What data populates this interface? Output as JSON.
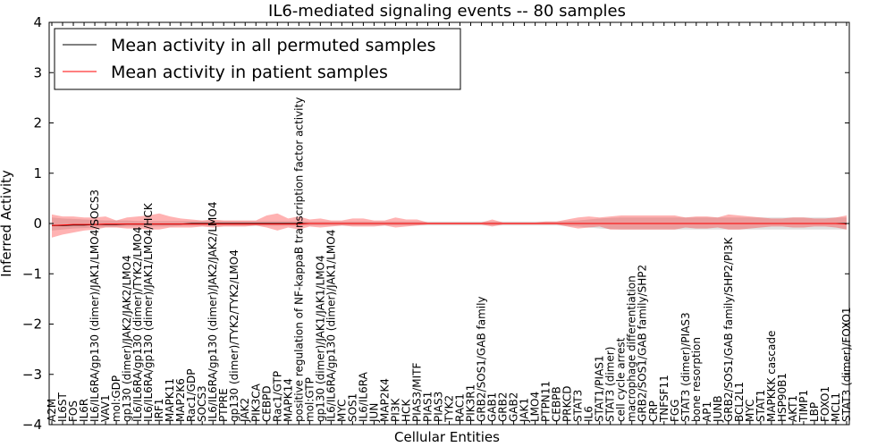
{
  "chart_data": {
    "type": "line",
    "title": "IL6-mediated signaling events -- 80 samples",
    "xlabel": "Cellular Entities",
    "ylabel": "Inferred Activity",
    "ylim": [
      -4,
      4
    ],
    "yticks": [
      -4,
      -3,
      -2,
      -1,
      0,
      1,
      2,
      3,
      4
    ],
    "ytick_labels": [
      "−4",
      "−3",
      "−2",
      "−1",
      "0",
      "1",
      "2",
      "3",
      "4"
    ],
    "legend": {
      "position": "top-left",
      "entries": [
        {
          "name": "Mean activity in all permuted samples",
          "color": "#000000"
        },
        {
          "name": "Mean activity in patient samples",
          "color": "#ff0000"
        }
      ]
    },
    "categories": [
      "A2M",
      "IL6ST",
      "FOS",
      "IL6R",
      "IL6/IL6RA/gp130 (dimer)/JAK1/LMO4/SOCS3",
      "VAV1",
      "mol:GDP",
      "gp130 (dimer)/JAK2/JAK2/LMO4",
      "IL6/IL6RA/gp130 (dimer)/TYK2/LMO4",
      "IL6/IL6RA/gp130 (dimer)/JAK1/LMO4/HCK",
      "IRF1",
      "MAPK11",
      "MAP2K6",
      "Rac1/GDP",
      "SOCS3",
      "IL6/IL6RA/gp130 (dimer)/JAK2/JAK2/LMO4",
      "PTPRE",
      "gp130 (dimer)/TYK2/TYK2/LMO4",
      "JAK2",
      "PIK3CA",
      "CEBPD",
      "Rac1/GTP",
      "MAPK14",
      "positive regulation of NF-kappaB transcription factor activity",
      "mol:GTP",
      "gp130 (dimer)/JAK1/JAK1/LMO4",
      "IL6/IL6RA/gp130 (dimer)/JAK1/LMO4",
      "MYC",
      "SOS1",
      "IL6/IL6RA",
      "JUN",
      "MAP2K4",
      "PI3K",
      "HCK",
      "PIAS3/MITF",
      "PIAS1",
      "PIAS3",
      "TYK2",
      "RAC1",
      "PIK3R1",
      "GRB2/SOS1/GAB family",
      "GAB1",
      "GRB2",
      "GAB2",
      "JAK1",
      "LMO4",
      "PTPN11",
      "CEBPB",
      "PRKCD",
      "STAT3",
      "IL6",
      "STAT1/PIAS1",
      "STAT3 (dimer)",
      "cell cycle arrest",
      "macrophage differentiation",
      "GRB2/SOS1/GAB family/SHP2",
      "CRP",
      "TNFSF11",
      "FGG",
      "STAT3 (dimer)/PIAS3",
      "bone resorption",
      "AP1",
      "JUNB",
      "GRB2/SOS1/GAB family/SHP2/PI3K",
      "BCL2L1",
      "MYC",
      "STAT1",
      "MAPKKK cascade",
      "HSP90B1",
      "AKT1",
      "TIMP1",
      "LBP",
      "FOXO1",
      "MCL1",
      "STAT3 (dimer)/FOXO1"
    ],
    "series": [
      {
        "name": "Mean activity in all permuted samples",
        "color": "#000000",
        "values": [
          -0.04,
          -0.04,
          -0.03,
          -0.03,
          -0.02,
          -0.02,
          -0.02,
          -0.01,
          -0.01,
          -0.01,
          -0.01,
          -0.01,
          -0.01,
          0.0,
          0.0,
          0.0,
          0.0,
          0.0,
          0.0,
          0.0,
          0.0,
          0.0,
          0.0,
          0.0,
          0.0,
          0.0,
          0.0,
          0.0,
          0.0,
          0.0,
          0.0,
          0.0,
          0.0,
          0.0,
          0.0,
          0.0,
          0.0,
          0.0,
          0.0,
          0.0,
          0.0,
          0.0,
          0.0,
          0.0,
          0.0,
          0.0,
          0.0,
          0.0,
          0.0,
          0.0,
          0.0,
          0.0,
          0.0,
          0.0,
          0.0,
          0.0,
          0.0,
          0.0,
          0.0,
          0.0,
          0.0,
          0.0,
          0.0,
          0.0,
          0.0,
          0.0,
          0.0,
          0.0,
          0.0,
          0.0,
          0.0,
          0.0,
          0.0,
          0.0,
          0.0
        ],
        "band_low": [
          -0.14,
          -0.12,
          -0.1,
          -0.09,
          -0.08,
          -0.07,
          -0.07,
          -0.06,
          -0.06,
          -0.06,
          -0.06,
          -0.06,
          -0.05,
          -0.05,
          -0.05,
          -0.05,
          -0.05,
          -0.05,
          -0.05,
          -0.05,
          -0.05,
          -0.05,
          -0.05,
          -0.05,
          -0.04,
          -0.04,
          -0.04,
          -0.04,
          -0.04,
          -0.04,
          -0.04,
          -0.04,
          -0.04,
          -0.04,
          -0.04,
          -0.04,
          -0.04,
          -0.04,
          -0.04,
          -0.04,
          -0.04,
          -0.04,
          -0.04,
          -0.04,
          -0.04,
          -0.04,
          -0.04,
          -0.04,
          -0.05,
          -0.06,
          -0.08,
          -0.1,
          -0.11,
          -0.12,
          -0.12,
          -0.12,
          -0.12,
          -0.12,
          -0.12,
          -0.12,
          -0.12,
          -0.12,
          -0.12,
          -0.12,
          -0.12,
          -0.12,
          -0.12,
          -0.12,
          -0.12,
          -0.12,
          -0.12,
          -0.12,
          -0.12,
          -0.12,
          -0.12
        ],
        "band_high": [
          0.12,
          0.1,
          0.09,
          0.08,
          0.07,
          0.06,
          0.06,
          0.06,
          0.05,
          0.05,
          0.05,
          0.05,
          0.05,
          0.05,
          0.05,
          0.05,
          0.05,
          0.05,
          0.05,
          0.05,
          0.05,
          0.05,
          0.05,
          0.05,
          0.04,
          0.04,
          0.04,
          0.04,
          0.04,
          0.04,
          0.04,
          0.04,
          0.04,
          0.04,
          0.04,
          0.04,
          0.04,
          0.04,
          0.04,
          0.04,
          0.04,
          0.04,
          0.04,
          0.04,
          0.04,
          0.04,
          0.04,
          0.04,
          0.05,
          0.06,
          0.08,
          0.1,
          0.11,
          0.12,
          0.12,
          0.12,
          0.12,
          0.12,
          0.12,
          0.12,
          0.12,
          0.12,
          0.12,
          0.12,
          0.12,
          0.12,
          0.12,
          0.12,
          0.12,
          0.12,
          0.12,
          0.12,
          0.12,
          0.12,
          0.12
        ]
      },
      {
        "name": "Mean activity in patient samples",
        "color": "#ff0000",
        "values": [
          -0.04,
          -0.03,
          -0.02,
          -0.02,
          -0.02,
          -0.01,
          -0.01,
          -0.01,
          -0.01,
          -0.01,
          -0.01,
          -0.01,
          -0.01,
          -0.01,
          -0.01,
          -0.01,
          -0.01,
          -0.01,
          -0.01,
          -0.01,
          -0.01,
          -0.01,
          -0.01,
          -0.01,
          0.0,
          0.0,
          0.0,
          0.0,
          0.0,
          0.0,
          0.0,
          0.0,
          0.0,
          0.0,
          0.0,
          0.0,
          0.0,
          0.0,
          0.0,
          0.0,
          0.0,
          0.0,
          0.0,
          0.0,
          0.0,
          0.0,
          0.0,
          0.0,
          0.0,
          0.0,
          0.0,
          0.0,
          0.0,
          0.0,
          0.0,
          0.0,
          0.0,
          0.0,
          0.0,
          0.0,
          0.0,
          0.0,
          0.0,
          0.0,
          0.0,
          0.0,
          0.0,
          0.0,
          0.0,
          0.0,
          0.0,
          0.0,
          0.0,
          0.0,
          -0.01
        ],
        "band_low": [
          -0.28,
          -0.22,
          -0.18,
          -0.14,
          -0.12,
          -0.08,
          -0.08,
          -0.1,
          -0.1,
          -0.12,
          -0.12,
          -0.08,
          -0.08,
          -0.08,
          -0.06,
          -0.08,
          -0.06,
          -0.06,
          -0.06,
          -0.04,
          -0.08,
          -0.14,
          -0.08,
          -0.12,
          -0.06,
          -0.08,
          -0.06,
          -0.04,
          -0.06,
          -0.06,
          -0.06,
          -0.04,
          -0.08,
          -0.06,
          -0.04,
          -0.02,
          -0.02,
          -0.02,
          -0.02,
          -0.02,
          -0.02,
          -0.06,
          -0.02,
          -0.02,
          -0.02,
          -0.02,
          -0.02,
          -0.02,
          -0.06,
          -0.1,
          -0.08,
          -0.06,
          -0.12,
          -0.12,
          -0.12,
          -0.12,
          -0.12,
          -0.12,
          -0.12,
          -0.08,
          -0.1,
          -0.1,
          -0.08,
          -0.12,
          -0.12,
          -0.1,
          -0.08,
          -0.06,
          -0.06,
          -0.08,
          -0.08,
          -0.06,
          -0.06,
          -0.08,
          -0.12
        ],
        "band_high": [
          0.18,
          0.14,
          0.14,
          0.12,
          0.12,
          0.14,
          0.06,
          0.12,
          0.14,
          0.16,
          0.2,
          0.14,
          0.1,
          0.08,
          0.06,
          0.08,
          0.06,
          0.06,
          0.06,
          0.06,
          0.16,
          0.2,
          0.1,
          0.14,
          0.08,
          0.1,
          0.06,
          0.06,
          0.1,
          0.1,
          0.06,
          0.06,
          0.12,
          0.08,
          0.08,
          0.02,
          0.02,
          0.02,
          0.02,
          0.02,
          0.02,
          0.08,
          0.02,
          0.02,
          0.02,
          0.02,
          0.04,
          0.04,
          0.08,
          0.12,
          0.14,
          0.12,
          0.14,
          0.16,
          0.16,
          0.16,
          0.16,
          0.16,
          0.16,
          0.12,
          0.14,
          0.14,
          0.12,
          0.18,
          0.16,
          0.14,
          0.12,
          0.1,
          0.1,
          0.12,
          0.12,
          0.1,
          0.1,
          0.12,
          0.16
        ]
      }
    ]
  }
}
